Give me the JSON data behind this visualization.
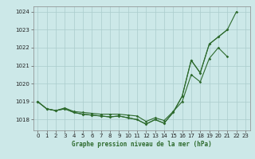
{
  "x": [
    0,
    1,
    2,
    3,
    4,
    5,
    6,
    7,
    8,
    9,
    10,
    11,
    12,
    13,
    14,
    15,
    16,
    17,
    18,
    19,
    20,
    21,
    22,
    23
  ],
  "line1": [
    1019.0,
    1018.6,
    1018.5,
    1018.6,
    1018.4,
    1018.3,
    1018.25,
    1018.2,
    1018.15,
    1018.2,
    1018.1,
    1018.0,
    1017.75,
    1018.0,
    1017.8,
    1018.4,
    1019.3,
    1021.3,
    1020.6,
    1022.2,
    1022.6,
    1023.0,
    1024.0,
    null
  ],
  "line2": [
    1019.0,
    1018.6,
    1018.5,
    1018.6,
    1018.4,
    1018.3,
    1018.25,
    1018.2,
    1018.15,
    1018.2,
    1018.1,
    1018.0,
    1017.75,
    1018.0,
    1017.8,
    1018.4,
    1019.3,
    1021.3,
    1020.6,
    1022.2,
    1022.6,
    1023.0,
    null,
    null
  ],
  "line3": [
    1019.0,
    1018.6,
    1018.5,
    1018.65,
    1018.45,
    1018.4,
    1018.35,
    1018.3,
    1018.3,
    1018.3,
    1018.25,
    1018.2,
    1017.9,
    1018.1,
    1017.95,
    1018.45,
    1019.0,
    1020.5,
    1020.1,
    1021.4,
    1022.0,
    1021.5,
    null,
    null
  ],
  "line_color": "#2d6a2d",
  "bg_color": "#cce8e8",
  "grid_color": "#aacccc",
  "title": "Graphe pression niveau de la mer (hPa)",
  "ylim": [
    1017.4,
    1024.3
  ],
  "yticks": [
    1018,
    1019,
    1020,
    1021,
    1022,
    1023,
    1024
  ],
  "xlim": [
    -0.5,
    23.5
  ],
  "xticks": [
    0,
    1,
    2,
    3,
    4,
    5,
    6,
    7,
    8,
    9,
    10,
    11,
    12,
    13,
    14,
    15,
    16,
    17,
    18,
    19,
    20,
    21,
    22,
    23
  ]
}
